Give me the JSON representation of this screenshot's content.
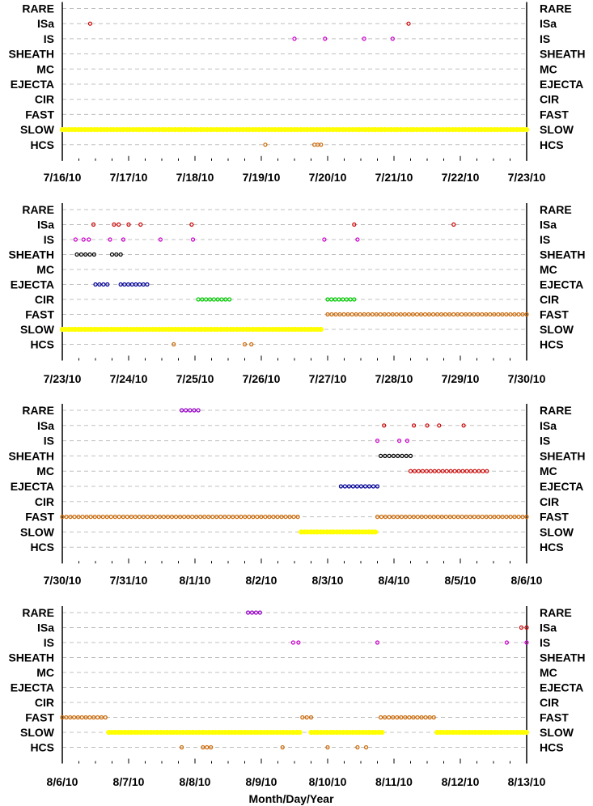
{
  "chart_data": {
    "type": "scatter",
    "xlabel": "Month/Day/Year",
    "categories": [
      "RARE",
      "ISa",
      "IS",
      "SHEATH",
      "MC",
      "EJECTA",
      "CIR",
      "FAST",
      "SLOW",
      "HCS"
    ],
    "colors": {
      "RARE": "#9900cc",
      "ISa": "#cc0000",
      "IS": "#cc00cc",
      "SHEATH": "#000000",
      "MC": "#cc0000",
      "EJECTA": "#000099",
      "CIR": "#00cc00",
      "FAST": "#cc6600",
      "SLOW": "#ffff00",
      "HCS": "#cc6600"
    },
    "panels": [
      {
        "xrange": [
          0,
          7
        ],
        "tick_labels": [
          "7/16/10",
          "7/17/10",
          "7/18/10",
          "7/19/10",
          "7/20/10",
          "7/21/10",
          "7/22/10",
          "7/23/10"
        ],
        "series": {
          "ISa": [
            0.42,
            5.22
          ],
          "IS": [
            3.5,
            3.96,
            4.55,
            4.98
          ],
          "SLOW": [
            [
              0,
              7
            ]
          ],
          "HCS": [
            3.06,
            3.8,
            3.85,
            3.9
          ]
        }
      },
      {
        "xrange": [
          0,
          7
        ],
        "tick_labels": [
          "7/23/10",
          "7/24/10",
          "7/25/10",
          "7/26/10",
          "7/27/10",
          "7/28/10",
          "7/29/10",
          "7/30/10"
        ],
        "series": {
          "ISa": [
            0.47,
            0.78,
            0.85,
            1.0,
            1.18,
            1.95,
            4.4,
            5.9
          ],
          "IS": [
            0.2,
            0.32,
            0.4,
            0.72,
            0.92,
            1.48,
            1.97,
            3.95,
            4.45
          ],
          "SHEATH": [
            [
              0.22,
              0.48
            ],
            [
              0.75,
              0.88
            ]
          ],
          "EJECTA": [
            [
              0.5,
              0.68
            ],
            [
              0.88,
              1.28
            ]
          ],
          "CIR": [
            [
              2.05,
              2.52
            ],
            [
              4.0,
              4.4
            ]
          ],
          "FAST": [
            [
              4.0,
              7.0
            ]
          ],
          "SLOW": [
            [
              0,
              3.9
            ]
          ],
          "HCS": [
            1.68,
            2.75,
            2.85
          ]
        }
      },
      {
        "xrange": [
          0,
          7
        ],
        "tick_labels": [
          "7/30/10",
          "7/31/10",
          "8/1/10",
          "8/2/10",
          "8/3/10",
          "8/4/10",
          "8/5/10",
          "8/6/10"
        ],
        "series": {
          "RARE": [
            [
              1.8,
              2.05
            ]
          ],
          "ISa": [
            4.85,
            5.3,
            5.5,
            5.68,
            6.05
          ],
          "IS": [
            4.75,
            5.08,
            5.2
          ],
          "SHEATH": [
            [
              4.8,
              5.25
            ]
          ],
          "MC": [
            [
              5.25,
              6.4
            ]
          ],
          "EJECTA": [
            [
              4.2,
              4.75
            ]
          ],
          "FAST": [
            [
              0,
              3.55
            ],
            [
              4.75,
              7.0
            ]
          ],
          "SLOW": [
            [
              3.6,
              4.72
            ]
          ]
        }
      },
      {
        "xrange": [
          0,
          7
        ],
        "tick_labels": [
          "8/6/10",
          "8/7/10",
          "8/8/10",
          "8/9/10",
          "8/10/10",
          "8/11/10",
          "8/12/10",
          "8/13/10"
        ],
        "series": {
          "RARE": [
            [
              2.8,
              2.98
            ]
          ],
          "ISa": [
            6.92,
            7.0
          ],
          "IS": [
            3.48,
            3.56,
            4.75,
            6.7,
            7.0
          ],
          "FAST": [
            [
              0,
              0.65
            ],
            [
              3.62,
              3.75
            ],
            [
              4.8,
              5.6
            ]
          ],
          "SLOW": [
            [
              0.7,
              3.58
            ],
            [
              3.75,
              4.82
            ],
            [
              5.65,
              7.0
            ]
          ],
          "HCS": [
            1.8,
            2.12,
            2.18,
            2.24,
            3.32,
            4.0,
            4.45,
            4.58
          ]
        }
      }
    ]
  }
}
